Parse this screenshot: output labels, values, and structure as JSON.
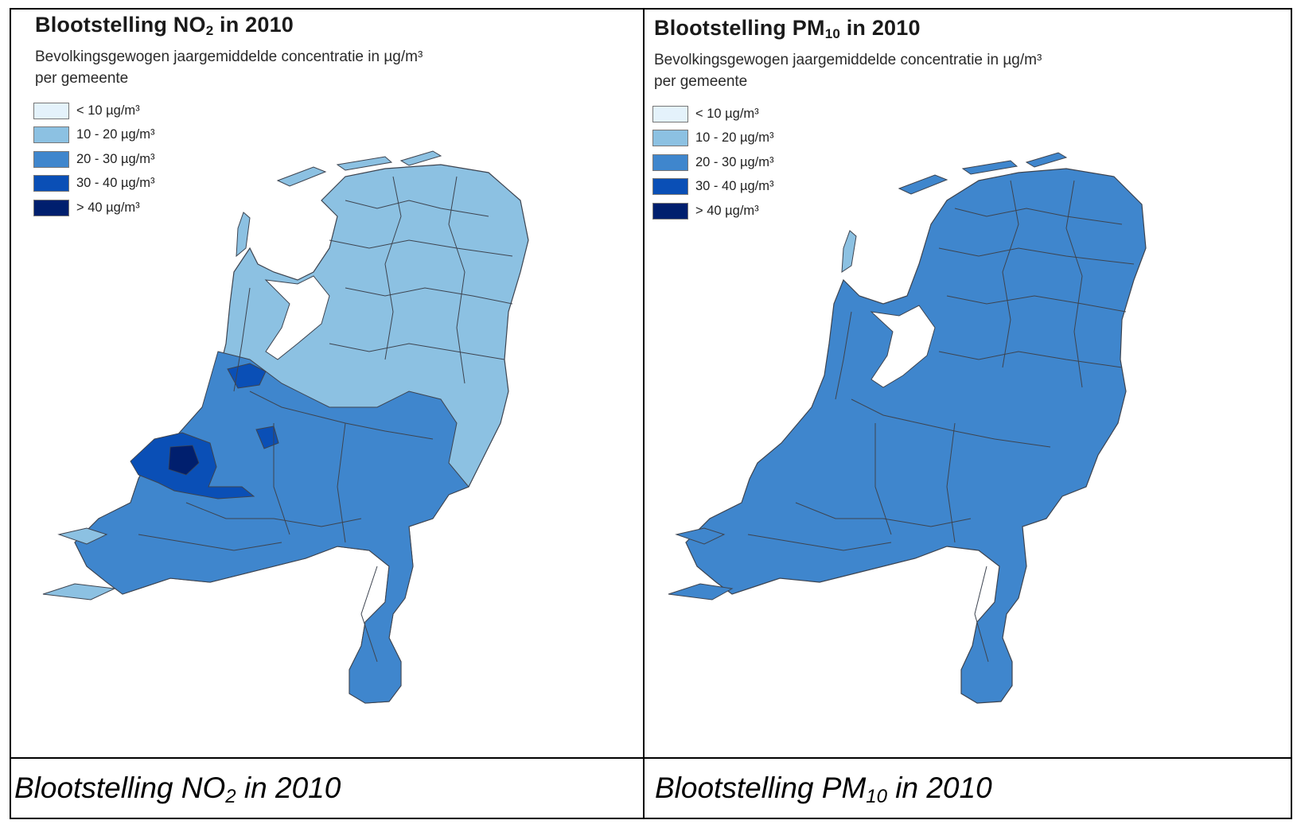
{
  "legend_colors": [
    "#e4f2fb",
    "#8cc1e2",
    "#3f86cd",
    "#0a4fb6",
    "#001f6e"
  ],
  "legend_labels": [
    "< 10 µg/m³",
    "10 - 20 µg/m³",
    "20 - 30 µg/m³",
    "30 - 40 µg/m³",
    "> 40 µg/m³"
  ],
  "border_color": "#3d4450",
  "panels": {
    "left": {
      "title_pre": "Blootstelling NO",
      "title_sub": "2",
      "title_post": " in 2010",
      "subtitle_line1": "Bevolkingsgewogen jaargemiddelde concentratie in µg/m³",
      "subtitle_line2": "per gemeente",
      "caption_pre": "Blootstelling NO",
      "caption_sub": "2",
      "caption_post": " in 2010"
    },
    "right": {
      "title_pre": "Blootstelling PM",
      "title_sub": "10",
      "title_post": " in 2010",
      "subtitle_line1": "Bevolkingsgewogen jaargemiddelde concentratie in µg/m³",
      "subtitle_line2": "per gemeente",
      "caption_pre": "Blootstelling PM",
      "caption_sub": "10",
      "caption_post": " in 2010"
    }
  },
  "no2_dominant_class": {
    "north_east": "10 - 20 µg/m³",
    "south_west": "20 - 30 µg/m³",
    "randstad_hotspots": "30 - 40 µg/m³"
  },
  "pm10_dominant_class": "20 - 30 µg/m³"
}
